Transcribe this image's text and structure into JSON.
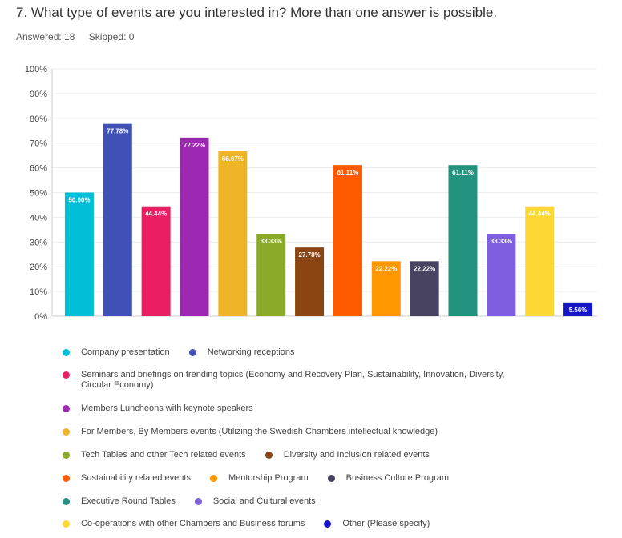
{
  "question": {
    "title": "7. What type of events are you interested in? More than one answer is possible.",
    "answered_label": "Answered: 18",
    "skipped_label": "Skipped: 0"
  },
  "chart_data": {
    "type": "bar",
    "title": "",
    "xlabel": "",
    "ylabel": "",
    "ylim": [
      0,
      100
    ],
    "yticks": [
      "0%",
      "10%",
      "20%",
      "30%",
      "40%",
      "50%",
      "60%",
      "70%",
      "80%",
      "90%",
      "100%"
    ],
    "categories": [
      "Company presentation",
      "Networking receptions",
      "Seminars and briefings on trending topics (Economy and Recovery Plan, Sustainability, Innovation, Diversity, Circular Economy)",
      "Members Luncheons with keynote speakers",
      "For Members, By Members events (Utilizing the Swedish Chambers intellectual knowledge)",
      "Tech Tables and other Tech related events",
      "Diversity and Inclusion related events",
      "Sustainability related events",
      "Mentorship Program",
      "Business Culture Program",
      "Executive Round Tables",
      "Social and Cultural events",
      "Co-operations with other Chambers and Business forums",
      "Other (Please specify)"
    ],
    "values": [
      50.0,
      77.78,
      44.44,
      72.22,
      66.67,
      33.33,
      27.78,
      61.11,
      22.22,
      22.22,
      61.11,
      33.33,
      44.44,
      5.56
    ],
    "value_labels": [
      "50.00%",
      "77.78%",
      "44.44%",
      "72.22%",
      "66.67%",
      "33.33%",
      "27.78%",
      "61.11%",
      "22.22%",
      "22.22%",
      "61.11%",
      "33.33%",
      "44.44%",
      "5.56%"
    ],
    "colors": [
      "#00BFD6",
      "#3F51B5",
      "#E91E63",
      "#9C27B0",
      "#F0B429",
      "#8BAA2A",
      "#8B4513",
      "#FF5A00",
      "#FF9800",
      "#474360",
      "#23927F",
      "#7E5FE0",
      "#FDD835",
      "#1616C8"
    ]
  },
  "legend": {
    "rows": [
      [
        0,
        1
      ],
      [
        2
      ],
      [
        3
      ],
      [
        4
      ],
      [
        5,
        6
      ],
      [
        7,
        8,
        9
      ],
      [
        10,
        11
      ],
      [
        12,
        13
      ]
    ]
  }
}
